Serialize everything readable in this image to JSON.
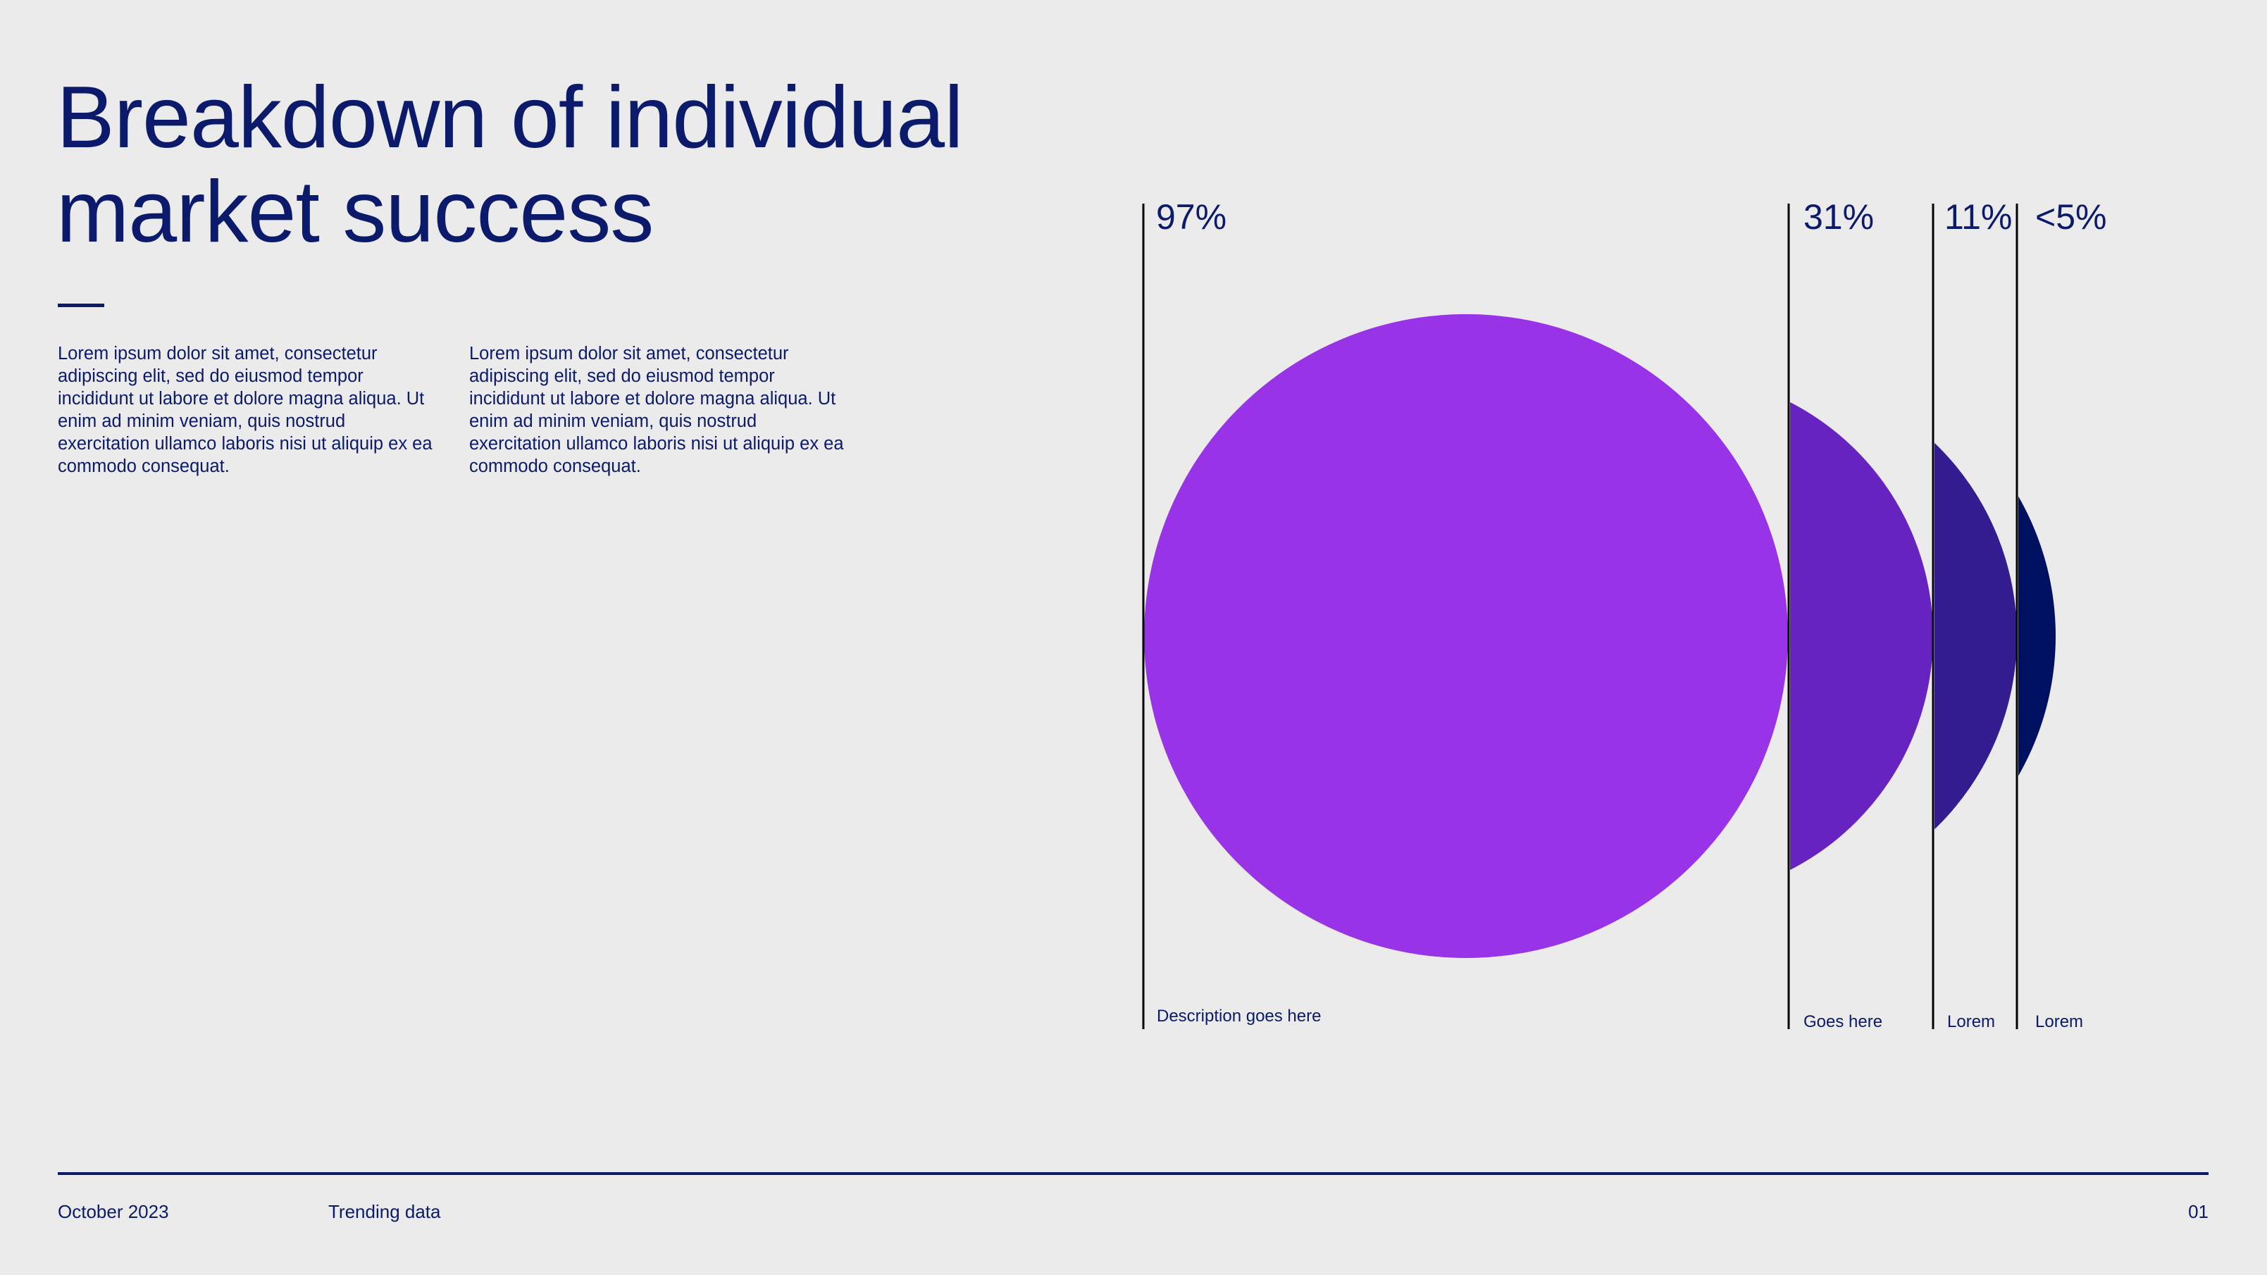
{
  "header": {
    "title_line1": "Breakdown of individual",
    "title_line2": "market success"
  },
  "body": {
    "col1": "Lorem ipsum dolor sit amet, consectetur adipiscing elit, sed do eiusmod tempor incididunt ut labore et dolore magna aliqua. Ut enim ad minim veniam, quis nostrud exercitation ullamco laboris nisi ut aliquip ex ea commodo consequat.",
    "col2": "Lorem ipsum dolor sit amet, consectetur adipiscing elit, sed do eiusmod tempor incididunt ut labore et dolore magna aliqua. Ut enim ad minim veniam, quis nostrud exercitation ullamco laboris nisi ut aliquip ex ea commodo consequat."
  },
  "chart_data": {
    "type": "bubble-segments",
    "title": "Breakdown of individual market success",
    "items": [
      {
        "label": "97%",
        "value": 97,
        "caption": "Description goes here",
        "color": "#9933e8"
      },
      {
        "label": "31%",
        "value": 31,
        "caption": "Goes here",
        "color": "#6623bf"
      },
      {
        "label": "11%",
        "value": 11,
        "caption": "Lorem",
        "color": "#321c8f"
      },
      {
        "label": "<5%",
        "value": 5,
        "caption": "Lorem",
        "color": "#001060"
      }
    ]
  },
  "footer": {
    "date": "October 2023",
    "section": "Trending data",
    "page": "01"
  }
}
